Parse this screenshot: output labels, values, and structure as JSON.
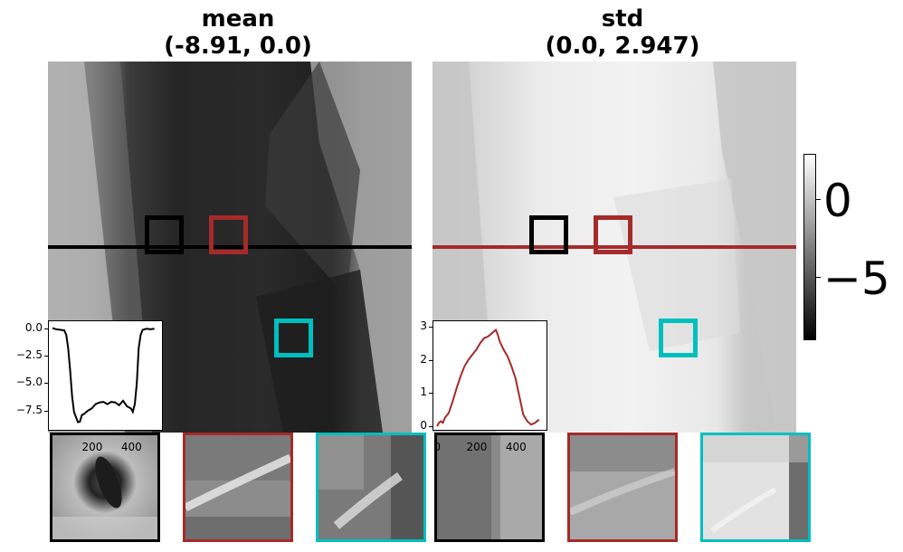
{
  "panels": [
    {
      "title_line1": "mean",
      "title_line2": "(-8.91, 0.0)",
      "line_color": "#000000"
    },
    {
      "title_line1": "std",
      "title_line2": "(0.0, 2.947)",
      "line_color": "#a52a2a"
    }
  ],
  "roi_colors": [
    "#000000",
    "#a52a2a",
    "#00bfbf"
  ],
  "colorbar": {
    "ticks": [
      "0",
      "−5"
    ],
    "colormap": "gray"
  },
  "chart_data": [
    {
      "type": "line",
      "title": "",
      "xlabel": "",
      "ylabel": "",
      "xlim": [
        0,
        540
      ],
      "ylim": [
        -8.91,
        0.3
      ],
      "xticks": [
        "200",
        "400"
      ],
      "yticks": [
        "0.0",
        "−2.5",
        "−5.0",
        "−7.5"
      ],
      "color": "#000000",
      "x": [
        0,
        20,
        40,
        60,
        70,
        80,
        90,
        100,
        110,
        120,
        130,
        140,
        150,
        160,
        180,
        200,
        220,
        240,
        260,
        280,
        300,
        320,
        340,
        360,
        380,
        400,
        410,
        420,
        430,
        440,
        450,
        460,
        480,
        500,
        520
      ],
      "y": [
        0,
        -0.1,
        -0.15,
        -0.2,
        -0.6,
        -1.8,
        -3.8,
        -6.2,
        -7.6,
        -8.1,
        -8.55,
        -8.5,
        -7.9,
        -7.8,
        -7.5,
        -7.3,
        -6.9,
        -6.75,
        -6.7,
        -6.9,
        -6.7,
        -6.75,
        -7.0,
        -6.6,
        -7.1,
        -7.3,
        -7.6,
        -6.9,
        -5.0,
        -1.8,
        -0.6,
        -0.15,
        -0.05,
        -0.1,
        -0.05
      ]
    },
    {
      "type": "line",
      "title": "",
      "xlabel": "",
      "ylabel": "",
      "xlim": [
        0,
        540
      ],
      "ylim": [
        0,
        3.05
      ],
      "xticks": [
        "0",
        "200",
        "400"
      ],
      "yticks": [
        "0",
        "1",
        "2",
        "3"
      ],
      "color": "#a52a2a",
      "x": [
        0,
        10,
        20,
        30,
        40,
        60,
        80,
        100,
        120,
        140,
        160,
        180,
        200,
        220,
        240,
        260,
        280,
        300,
        310,
        320,
        340,
        360,
        380,
        400,
        420,
        440,
        460,
        480,
        500,
        520
      ],
      "y": [
        0.0,
        0.1,
        0.15,
        0.1,
        0.25,
        0.4,
        0.75,
        1.15,
        1.5,
        1.8,
        2.0,
        2.15,
        2.3,
        2.5,
        2.65,
        2.7,
        2.8,
        2.9,
        2.75,
        2.55,
        2.3,
        2.1,
        1.8,
        1.45,
        0.9,
        0.35,
        0.15,
        0.05,
        0.1,
        0.2
      ]
    }
  ]
}
